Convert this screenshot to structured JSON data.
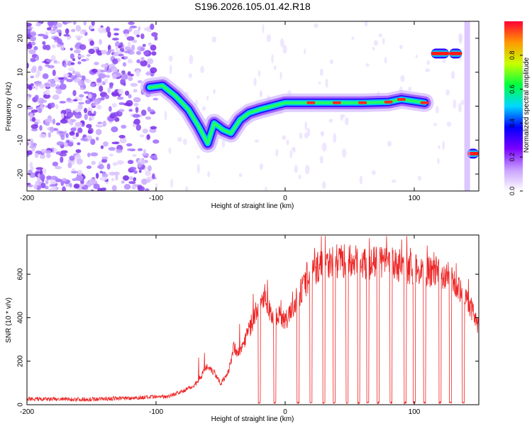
{
  "title": "S196.2026.105.01.42.R18",
  "chart_data": [
    {
      "type": "heatmap",
      "xlabel": "Height of straight line (km)",
      "ylabel": "Frequency (Hz)",
      "xlim": [
        -200,
        150
      ],
      "ylim": [
        -25,
        25
      ],
      "x_ticks": [
        -200,
        -100,
        0,
        100
      ],
      "y_ticks": [
        -20,
        -10,
        0,
        10,
        20
      ],
      "colorbar": {
        "label": "Normalized spectral amplitude",
        "range": [
          0,
          1
        ],
        "ticks": [
          "0.0",
          "0.2",
          "0.4",
          "0.6",
          "0.8"
        ],
        "colormap": [
          "#ffffff",
          "#c8a0ff",
          "#7a00ff",
          "#0000ff",
          "#00d8ff",
          "#00ff40",
          "#c8ff00",
          "#ff9900",
          "#ff0033"
        ]
      },
      "noise_region_x": [
        -200,
        -100
      ],
      "trace": [
        {
          "x": -105,
          "y": 5.5
        },
        {
          "x": -95,
          "y": 6
        },
        {
          "x": -85,
          "y": 3
        },
        {
          "x": -75,
          "y": -1
        },
        {
          "x": -67,
          "y": -6
        },
        {
          "x": -60,
          "y": -11
        },
        {
          "x": -55,
          "y": -5
        },
        {
          "x": -48,
          "y": -7
        },
        {
          "x": -42,
          "y": -8
        },
        {
          "x": -35,
          "y": -4
        },
        {
          "x": -28,
          "y": -2
        },
        {
          "x": -20,
          "y": -1
        },
        {
          "x": -10,
          "y": 0
        },
        {
          "x": 0,
          "y": 1
        },
        {
          "x": 20,
          "y": 1
        },
        {
          "x": 40,
          "y": 1
        },
        {
          "x": 60,
          "y": 1
        },
        {
          "x": 80,
          "y": 1.2
        },
        {
          "x": 90,
          "y": 2
        },
        {
          "x": 108,
          "y": 1
        }
      ],
      "bright_segments": [
        {
          "x0": 113,
          "x1": 127,
          "y": 15.5
        },
        {
          "x0": 127,
          "x1": 137,
          "y": 15.5
        },
        {
          "x0": 141,
          "x1": 150,
          "y": -14
        }
      ]
    },
    {
      "type": "line",
      "xlabel": "Height of straight line (km)",
      "ylabel": "SNR (10 * v/v)",
      "xlim": [
        -200,
        150
      ],
      "ylim": [
        0,
        780
      ],
      "x_ticks": [
        -200,
        -100,
        0,
        100
      ],
      "y_ticks": [
        0,
        200,
        400,
        600
      ],
      "color": "#ee2222",
      "series": [
        {
          "name": "SNR",
          "x": [
            -200,
            -150,
            -100,
            -90,
            -80,
            -70,
            -60,
            -55,
            -50,
            -45,
            -40,
            -35,
            -30,
            -25,
            -20,
            -15,
            -10,
            -5,
            0,
            5,
            10,
            20,
            30,
            40,
            50,
            60,
            70,
            80,
            90,
            100,
            110,
            120,
            125,
            130,
            135,
            140,
            145,
            150
          ],
          "y": [
            25,
            25,
            35,
            40,
            60,
            90,
            180,
            150,
            100,
            130,
            260,
            240,
            320,
            380,
            470,
            500,
            380,
            420,
            380,
            430,
            500,
            600,
            660,
            660,
            660,
            650,
            650,
            650,
            640,
            620,
            610,
            610,
            600,
            570,
            540,
            500,
            430,
            360
          ]
        }
      ],
      "dropouts_x": [
        -20,
        -8,
        10,
        20,
        30,
        38,
        48,
        57,
        64,
        72,
        82,
        93,
        100,
        108,
        120,
        128,
        138
      ]
    }
  ]
}
